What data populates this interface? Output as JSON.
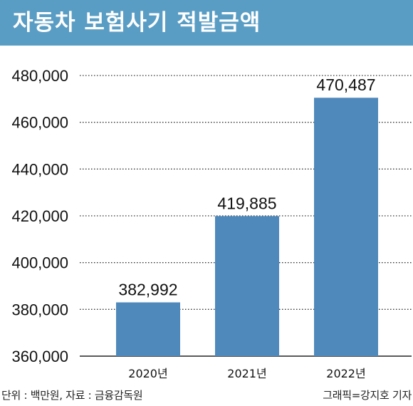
{
  "header": {
    "title": "자동차 보험사기 적발금액",
    "background": "#5a9dc4"
  },
  "chart_data": {
    "type": "bar",
    "categories": [
      "2020년",
      "2021년",
      "2022년"
    ],
    "values": [
      382992,
      419885,
      470487
    ],
    "value_labels": [
      "382,992",
      "419,885",
      "470,487"
    ],
    "ylim": [
      360000,
      480000
    ],
    "yticks": [
      360000,
      380000,
      400000,
      420000,
      440000,
      460000,
      480000
    ],
    "ytick_labels": [
      "360,000",
      "380,000",
      "400,000",
      "420,000",
      "440,000",
      "460,000",
      "480,000"
    ],
    "bar_color": "#4f89bc",
    "grid": "horizontal dotted",
    "title": "",
    "xlabel": "",
    "ylabel": ""
  },
  "footer": {
    "unit_note": "단위 : 백만원, 자료 : 금융감독원",
    "credit": "그래픽=강지호 기자"
  }
}
